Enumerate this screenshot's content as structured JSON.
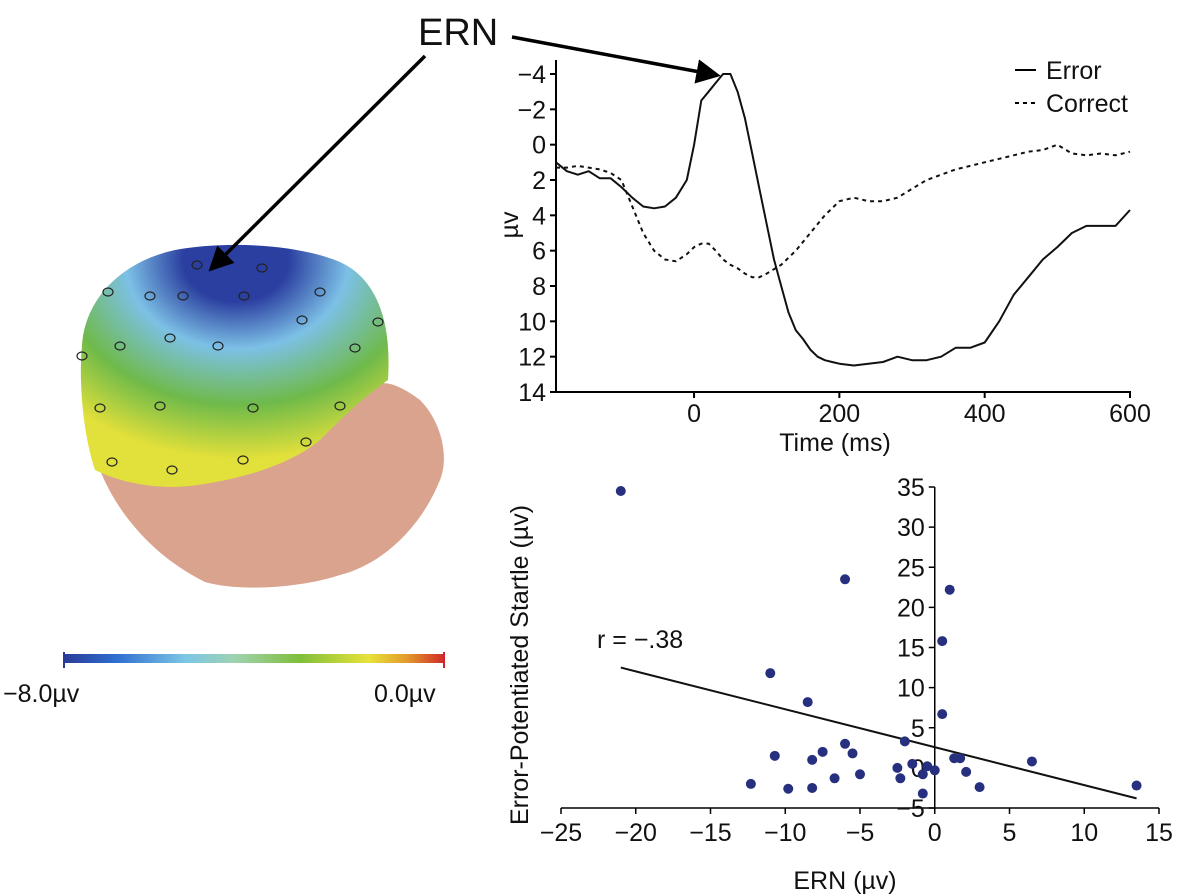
{
  "annotation": {
    "ern_label": "ERN"
  },
  "colorbar": {
    "min_label": "−8.0µv",
    "max_label": "0.0µv",
    "colors": [
      "#2b3a97",
      "#2f6fd0",
      "#7cc6e6",
      "#9fd2b0",
      "#7fbf3a",
      "#e8e23a",
      "#e39a2b",
      "#d0282a"
    ]
  },
  "head": {
    "skin_color": "#d9a38e",
    "scalp_colors": {
      "top": "#2b3fa0",
      "upper": "#7cc0e6",
      "middle": "#6fba4a",
      "lower": "#e2e03a"
    }
  },
  "chart_data": [
    {
      "type": "line",
      "title": "",
      "xlabel": "Time (ms)",
      "ylabel": "µv",
      "xlim": [
        -190,
        600
      ],
      "ylim": [
        -4.5,
        14
      ],
      "y_inverted": true,
      "xticks": [
        0,
        200,
        400,
        600
      ],
      "yticks": [
        -4,
        -2,
        0,
        2,
        4,
        6,
        8,
        10,
        12,
        14
      ],
      "ytick_labels": [
        "−4",
        "−2",
        "0",
        "2",
        "4",
        "6",
        "8",
        "10",
        "12",
        "14"
      ],
      "legend": {
        "placement": "top-right",
        "entries": [
          "Error",
          "Correct"
        ]
      },
      "series": [
        {
          "name": "Error",
          "style": "solid",
          "x": [
            -190,
            -175,
            -160,
            -145,
            -130,
            -115,
            -100,
            -85,
            -70,
            -55,
            -40,
            -25,
            -10,
            0,
            10,
            20,
            30,
            40,
            50,
            60,
            70,
            80,
            90,
            100,
            110,
            120,
            130,
            140,
            150,
            160,
            170,
            180,
            190,
            200,
            220,
            240,
            260,
            280,
            300,
            320,
            340,
            360,
            380,
            400,
            420,
            440,
            460,
            480,
            500,
            520,
            540,
            560,
            580,
            600
          ],
          "y": [
            1.0,
            1.5,
            1.7,
            1.5,
            1.9,
            1.9,
            2.4,
            3.0,
            3.5,
            3.6,
            3.5,
            3.0,
            2.0,
            0.0,
            -2.5,
            -3.0,
            -3.5,
            -4.0,
            -4.0,
            -3.0,
            -1.5,
            0.5,
            2.5,
            4.5,
            6.5,
            8.0,
            9.5,
            10.5,
            11.0,
            11.6,
            12.0,
            12.2,
            12.3,
            12.4,
            12.5,
            12.4,
            12.3,
            12.0,
            12.2,
            12.2,
            12.0,
            11.5,
            11.5,
            11.2,
            10.0,
            8.5,
            7.5,
            6.5,
            5.8,
            5.0,
            4.6,
            4.6,
            4.6,
            3.7
          ]
        },
        {
          "name": "Correct",
          "style": "dashed",
          "x": [
            -190,
            -175,
            -160,
            -145,
            -130,
            -115,
            -100,
            -85,
            -70,
            -55,
            -40,
            -25,
            -10,
            0,
            10,
            20,
            30,
            40,
            50,
            60,
            70,
            80,
            90,
            100,
            120,
            140,
            160,
            180,
            200,
            220,
            240,
            260,
            280,
            300,
            320,
            340,
            360,
            380,
            400,
            420,
            440,
            460,
            480,
            500,
            520,
            540,
            560,
            580,
            600
          ],
          "y": [
            1.3,
            1.3,
            1.2,
            1.3,
            1.4,
            1.6,
            2.0,
            3.5,
            5.0,
            6.0,
            6.5,
            6.6,
            6.2,
            5.8,
            5.6,
            5.6,
            6.0,
            6.5,
            6.8,
            7.0,
            7.3,
            7.5,
            7.5,
            7.3,
            6.8,
            6.0,
            5.0,
            4.0,
            3.2,
            3.0,
            3.2,
            3.2,
            3.0,
            2.5,
            2.0,
            1.7,
            1.4,
            1.2,
            1.0,
            0.8,
            0.6,
            0.4,
            0.3,
            0.0,
            0.5,
            0.6,
            0.5,
            0.6,
            0.4
          ]
        }
      ]
    },
    {
      "type": "scatter",
      "title": "",
      "xlabel": "ERN (µv)",
      "ylabel": "Error-Potentiated Startle (µv)",
      "xlim": [
        -25,
        15
      ],
      "ylim": [
        -5,
        35
      ],
      "xticks": [
        -25,
        -20,
        -15,
        -10,
        -5,
        0,
        5,
        10,
        15
      ],
      "xtick_labels": [
        "−25",
        "−20",
        "−15",
        "−10",
        "−5",
        "0",
        "5",
        "10",
        "15"
      ],
      "yticks": [
        -5,
        0,
        5,
        10,
        15,
        20,
        25,
        30,
        35
      ],
      "ytick_labels": [
        "−5",
        "0",
        "5",
        "10",
        "15",
        "20",
        "25",
        "30",
        "35"
      ],
      "annotation": "r = −.38",
      "regression": {
        "x": [
          -21,
          13.5
        ],
        "y": [
          12.5,
          -3.8
        ]
      },
      "points": [
        [
          -21,
          34.5
        ],
        [
          -6,
          23.5
        ],
        [
          1,
          22.2
        ],
        [
          0.5,
          15.8
        ],
        [
          -11,
          11.8
        ],
        [
          -8.5,
          8.2
        ],
        [
          0.5,
          6.7
        ],
        [
          -2,
          3.3
        ],
        [
          -6,
          3.0
        ],
        [
          -5.5,
          1.8
        ],
        [
          -7.5,
          2.0
        ],
        [
          -10.7,
          1.5
        ],
        [
          -8.2,
          1.0
        ],
        [
          -2.5,
          0.0
        ],
        [
          -1.5,
          0.5
        ],
        [
          -0.5,
          0.2
        ],
        [
          0.0,
          -0.3
        ],
        [
          1.3,
          1.2
        ],
        [
          1.7,
          1.2
        ],
        [
          2.1,
          -0.5
        ],
        [
          6.5,
          0.8
        ],
        [
          3.0,
          -2.4
        ],
        [
          -0.8,
          -0.8
        ],
        [
          -2.3,
          -1.3
        ],
        [
          -5.0,
          -0.8
        ],
        [
          -6.7,
          -1.3
        ],
        [
          -12.3,
          -2.0
        ],
        [
          -9.8,
          -2.6
        ],
        [
          -8.2,
          -2.5
        ],
        [
          -0.8,
          -3.2
        ],
        [
          13.5,
          -2.2
        ]
      ],
      "point_color": "#27307e"
    }
  ]
}
